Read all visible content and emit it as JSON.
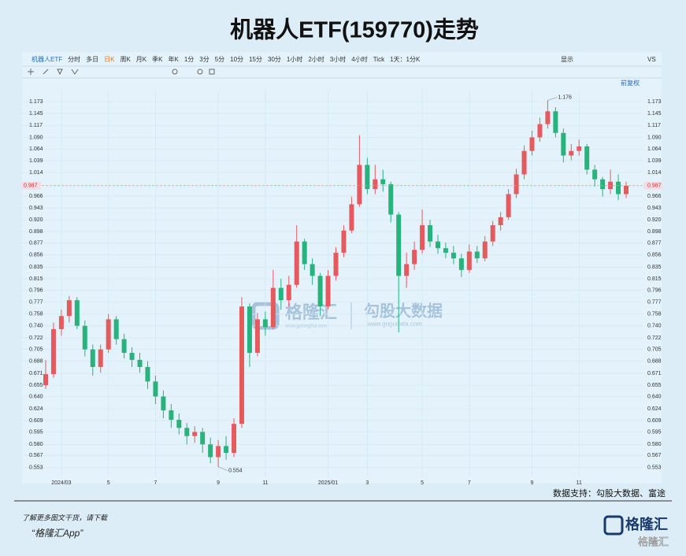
{
  "header": {
    "title": "机器人ETF(159770)走势"
  },
  "toolbar": {
    "items": [
      "机器人ETF",
      "分时",
      "多日",
      "日K",
      "周K",
      "月K",
      "季K",
      "年K",
      "1分",
      "3分",
      "5分",
      "10分",
      "15分",
      "30分",
      "1小时",
      "2小时",
      "3小时",
      "4小时",
      "Tick",
      "1天：1分K"
    ],
    "selected": "日K",
    "right": [
      "显示",
      "VS"
    ],
    "adjust": "前复权"
  },
  "watermark": {
    "brand": "格隆汇",
    "brand_url": "www.gelonghui.com",
    "partner": "勾股大数据",
    "partner_url": "www.gogudata.com"
  },
  "footer": {
    "source": "数据支持：勾股大数据、富途",
    "promo": "了解更多图文干货，请下载",
    "app": "“格隆汇App”",
    "logo": "格隆汇"
  },
  "chart_data": {
    "type": "candlestick",
    "log": true,
    "grid": true,
    "up_color": "#e65a5f",
    "down_color": "#27b37b",
    "ylim": [
      0.543,
      1.2
    ],
    "yticks": [
      {
        "value": 1.173,
        "label": "1.173"
      },
      {
        "value": 1.145,
        "label": "1.145"
      },
      {
        "value": 1.117,
        "label": "1.117"
      },
      {
        "value": 1.09,
        "label": "1.090"
      },
      {
        "value": 1.064,
        "label": "1.064"
      },
      {
        "value": 1.039,
        "label": "1.039"
      },
      {
        "value": 1.014,
        "label": "1.014"
      },
      {
        "value": 0.966,
        "label": "0.966"
      },
      {
        "value": 0.943,
        "label": "0.943"
      },
      {
        "value": 0.92,
        "label": "0.920"
      },
      {
        "value": 0.898,
        "label": "0.898"
      },
      {
        "value": 0.877,
        "label": "0.877"
      },
      {
        "value": 0.856,
        "label": "0.856"
      },
      {
        "value": 0.835,
        "label": "0.835"
      },
      {
        "value": 0.815,
        "label": "0.815"
      },
      {
        "value": 0.796,
        "label": "0.796"
      },
      {
        "value": 0.777,
        "label": "0.777"
      },
      {
        "value": 0.758,
        "label": "0.758"
      },
      {
        "value": 0.74,
        "label": "0.740"
      },
      {
        "value": 0.722,
        "label": "0.722"
      },
      {
        "value": 0.705,
        "label": "0.705"
      },
      {
        "value": 0.688,
        "label": "0.688"
      },
      {
        "value": 0.671,
        "label": "0.671"
      },
      {
        "value": 0.655,
        "label": "0.655"
      },
      {
        "value": 0.64,
        "label": "0.640"
      },
      {
        "value": 0.624,
        "label": "0.624"
      },
      {
        "value": 0.609,
        "label": "0.609"
      },
      {
        "value": 0.595,
        "label": "0.595"
      },
      {
        "value": 0.58,
        "label": "0.580"
      },
      {
        "value": 0.567,
        "label": "0.567"
      },
      {
        "value": 0.553,
        "label": "0.553"
      }
    ],
    "price_line": {
      "value": 0.987,
      "label": "0.987"
    },
    "annotations": [
      {
        "value": 1.176,
        "label": "1.176"
      },
      {
        "value": 0.554,
        "label": "0.554"
      }
    ],
    "categories": [
      null,
      null,
      "2024/03",
      null,
      null,
      null,
      null,
      null,
      "5",
      null,
      null,
      null,
      null,
      null,
      "7",
      null,
      null,
      null,
      null,
      null,
      null,
      null,
      "9",
      null,
      null,
      null,
      null,
      null,
      "11",
      null,
      null,
      null,
      null,
      null,
      null,
      null,
      "2025/01",
      null,
      null,
      null,
      null,
      "3",
      null,
      null,
      null,
      null,
      null,
      null,
      "5",
      null,
      null,
      null,
      null,
      null,
      "7",
      null,
      null,
      null,
      null,
      null,
      null,
      null,
      "9",
      null,
      null,
      null,
      null,
      null,
      "11",
      null,
      null,
      null,
      null,
      null,
      null
    ],
    "values": [
      [
        0.655,
        0.69,
        0.65,
        0.67
      ],
      [
        0.67,
        0.745,
        0.665,
        0.735
      ],
      [
        0.735,
        0.765,
        0.725,
        0.755
      ],
      [
        0.755,
        0.787,
        0.745,
        0.78
      ],
      [
        0.78,
        0.785,
        0.735,
        0.74
      ],
      [
        0.74,
        0.748,
        0.695,
        0.705
      ],
      [
        0.705,
        0.712,
        0.668,
        0.68
      ],
      [
        0.68,
        0.712,
        0.672,
        0.705
      ],
      [
        0.705,
        0.758,
        0.7,
        0.75
      ],
      [
        0.75,
        0.755,
        0.712,
        0.72
      ],
      [
        0.72,
        0.728,
        0.692,
        0.7
      ],
      [
        0.7,
        0.708,
        0.68,
        0.69
      ],
      [
        0.69,
        0.7,
        0.672,
        0.68
      ],
      [
        0.68,
        0.688,
        0.65,
        0.66
      ],
      [
        0.66,
        0.668,
        0.63,
        0.64
      ],
      [
        0.64,
        0.648,
        0.612,
        0.622
      ],
      [
        0.622,
        0.63,
        0.6,
        0.61
      ],
      [
        0.61,
        0.618,
        0.592,
        0.6
      ],
      [
        0.6,
        0.606,
        0.58,
        0.59
      ],
      [
        0.59,
        0.602,
        0.582,
        0.595
      ],
      [
        0.595,
        0.6,
        0.57,
        0.58
      ],
      [
        0.58,
        0.588,
        0.558,
        0.565
      ],
      [
        0.565,
        0.585,
        0.554,
        0.578
      ],
      [
        0.578,
        0.59,
        0.562,
        0.57
      ],
      [
        0.57,
        0.612,
        0.565,
        0.605
      ],
      [
        0.605,
        0.785,
        0.6,
        0.77
      ],
      [
        0.77,
        0.775,
        0.68,
        0.7
      ],
      [
        0.7,
        0.76,
        0.695,
        0.75
      ],
      [
        0.75,
        0.762,
        0.725,
        0.738
      ],
      [
        0.738,
        0.83,
        0.735,
        0.8
      ],
      [
        0.8,
        0.815,
        0.765,
        0.78
      ],
      [
        0.78,
        0.82,
        0.77,
        0.805
      ],
      [
        0.805,
        0.91,
        0.8,
        0.88
      ],
      [
        0.88,
        0.885,
        0.83,
        0.84
      ],
      [
        0.84,
        0.85,
        0.805,
        0.82
      ],
      [
        0.82,
        0.825,
        0.755,
        0.77
      ],
      [
        0.77,
        0.83,
        0.765,
        0.82
      ],
      [
        0.82,
        0.87,
        0.812,
        0.86
      ],
      [
        0.86,
        0.91,
        0.852,
        0.9
      ],
      [
        0.9,
        0.965,
        0.895,
        0.95
      ],
      [
        0.95,
        1.095,
        0.945,
        1.03
      ],
      [
        1.03,
        1.045,
        0.97,
        0.98
      ],
      [
        0.98,
        1.03,
        0.97,
        1.0
      ],
      [
        1.0,
        1.02,
        0.975,
        0.99
      ],
      [
        0.99,
        0.995,
        0.915,
        0.93
      ],
      [
        0.93,
        0.935,
        0.73,
        0.82
      ],
      [
        0.82,
        0.86,
        0.8,
        0.84
      ],
      [
        0.84,
        0.88,
        0.83,
        0.865
      ],
      [
        0.865,
        0.94,
        0.858,
        0.91
      ],
      [
        0.91,
        0.92,
        0.87,
        0.88
      ],
      [
        0.88,
        0.892,
        0.858,
        0.868
      ],
      [
        0.868,
        0.878,
        0.85,
        0.86
      ],
      [
        0.86,
        0.872,
        0.84,
        0.85
      ],
      [
        0.85,
        0.858,
        0.818,
        0.83
      ],
      [
        0.83,
        0.875,
        0.825,
        0.862
      ],
      [
        0.862,
        0.872,
        0.842,
        0.85
      ],
      [
        0.85,
        0.89,
        0.845,
        0.88
      ],
      [
        0.88,
        0.918,
        0.872,
        0.91
      ],
      [
        0.91,
        0.935,
        0.9,
        0.925
      ],
      [
        0.925,
        0.98,
        0.92,
        0.97
      ],
      [
        0.97,
        1.022,
        0.962,
        1.01
      ],
      [
        1.01,
        1.072,
        1.0,
        1.06
      ],
      [
        1.06,
        1.105,
        1.05,
        1.09
      ],
      [
        1.09,
        1.135,
        1.08,
        1.12
      ],
      [
        1.12,
        1.176,
        1.11,
        1.15
      ],
      [
        1.15,
        1.16,
        1.09,
        1.1
      ],
      [
        1.1,
        1.11,
        1.035,
        1.05
      ],
      [
        1.05,
        1.075,
        1.04,
        1.06
      ],
      [
        1.06,
        1.085,
        1.05,
        1.07
      ],
      [
        1.07,
        1.075,
        1.01,
        1.02
      ],
      [
        1.02,
        1.03,
        0.985,
        1.0
      ],
      [
        1.0,
        1.005,
        0.965,
        0.98
      ],
      [
        0.98,
        1.02,
        0.97,
        0.995
      ],
      [
        0.995,
        1.01,
        0.958,
        0.97
      ],
      [
        0.97,
        0.995,
        0.962,
        0.987
      ]
    ]
  }
}
